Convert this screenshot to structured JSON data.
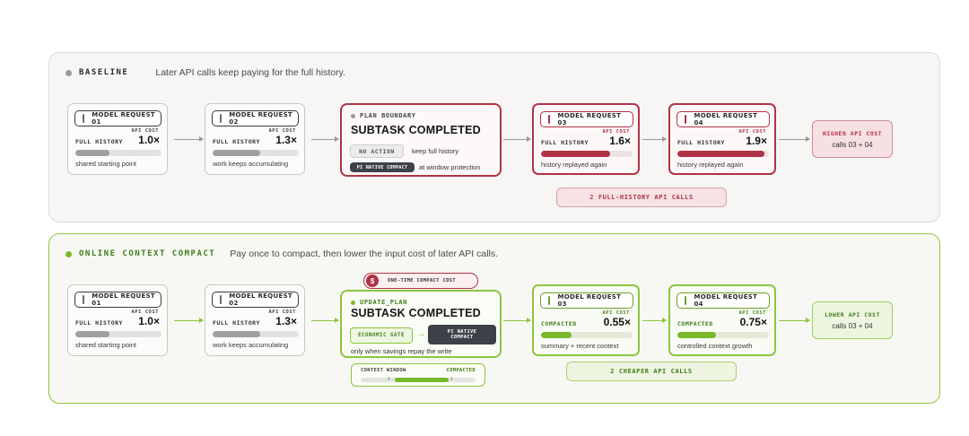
{
  "baseline": {
    "title": "BASELINE",
    "description": "Later API calls keep paying for the full history.",
    "requests": [
      {
        "label": "MODEL REQUEST 01",
        "cost_label": "API COST",
        "history_label": "FULL HISTORY",
        "cost": "1.0×",
        "fill_fraction": 0.4,
        "caption": "shared starting point"
      },
      {
        "label": "MODEL REQUEST 02",
        "cost_label": "API COST",
        "history_label": "FULL HISTORY",
        "cost": "1.3×",
        "fill_fraction": 0.55,
        "caption": "work keeps accumulating"
      }
    ],
    "boundary": {
      "tag": "PLAN BOUNDARY",
      "title": "SUBTASK COMPLETED",
      "no_action": "NO ACTION",
      "no_action_text": "keep full history",
      "pi_native": "PI NATIVE COMPACT",
      "pi_native_text": "at window protection"
    },
    "late_requests": [
      {
        "label": "MODEL REQUEST 03",
        "cost_label": "API COST",
        "history_label": "FULL HISTORY",
        "cost": "1.6×",
        "fill_fraction": 0.75,
        "caption": "history replayed again"
      },
      {
        "label": "MODEL REQUEST 04",
        "cost_label": "API COST",
        "history_label": "FULL HISTORY",
        "cost": "1.9×",
        "fill_fraction": 0.95,
        "caption": "history replayed again"
      }
    ],
    "result": {
      "title": "HIGHER API COST",
      "subtitle": "calls 03 + 04"
    },
    "band": "2 FULL-HISTORY API CALLS"
  },
  "online": {
    "title": "ONLINE CONTEXT COMPACT",
    "description": "Pay once to compact, then lower the input cost of later API calls.",
    "requests": [
      {
        "label": "MODEL REQUEST 01",
        "cost_label": "API COST",
        "history_label": "FULL HISTORY",
        "cost": "1.0×",
        "fill_fraction": 0.4,
        "caption": "shared starting point"
      },
      {
        "label": "MODEL REQUEST 02",
        "cost_label": "API COST",
        "history_label": "FULL HISTORY",
        "cost": "1.3×",
        "fill_fraction": 0.55,
        "caption": "work keeps accumulating"
      }
    ],
    "one_time": {
      "icon_glyph": "$",
      "label": "ONE-TIME COMPACT COST"
    },
    "boundary": {
      "tag": "UPDATE_PLAN",
      "title": "SUBTASK COMPLETED",
      "gate": "ECONOMIC GATE",
      "arrow_glyph": "→",
      "pi_native_line1": "PI NATIVE",
      "pi_native_line2": "COMPACT",
      "note": "only when savings repay the write"
    },
    "context_window": {
      "left": "CONTEXT WINDOW",
      "right": "COMPACTED",
      "marker_left": "›",
      "marker_right": "‹"
    },
    "late_requests": [
      {
        "label": "MODEL REQUEST 03",
        "cost_label": "API COST",
        "history_label": "COMPACTED",
        "cost": "0.55×",
        "fill_fraction": 0.33,
        "caption": "summary + recent context"
      },
      {
        "label": "MODEL REQUEST 04",
        "cost_label": "API COST",
        "history_label": "COMPACTED",
        "cost": "0.75×",
        "fill_fraction": 0.42,
        "caption": "controlled context growth"
      }
    ],
    "result": {
      "title": "LOWER API COST",
      "subtitle": "calls 03 + 04"
    },
    "band": "2 CHEAPER API CALLS"
  },
  "colors": {
    "red": "#b03346",
    "green": "#8cc63f",
    "gray": "#a0a0a0",
    "dark": "#3d4249"
  }
}
